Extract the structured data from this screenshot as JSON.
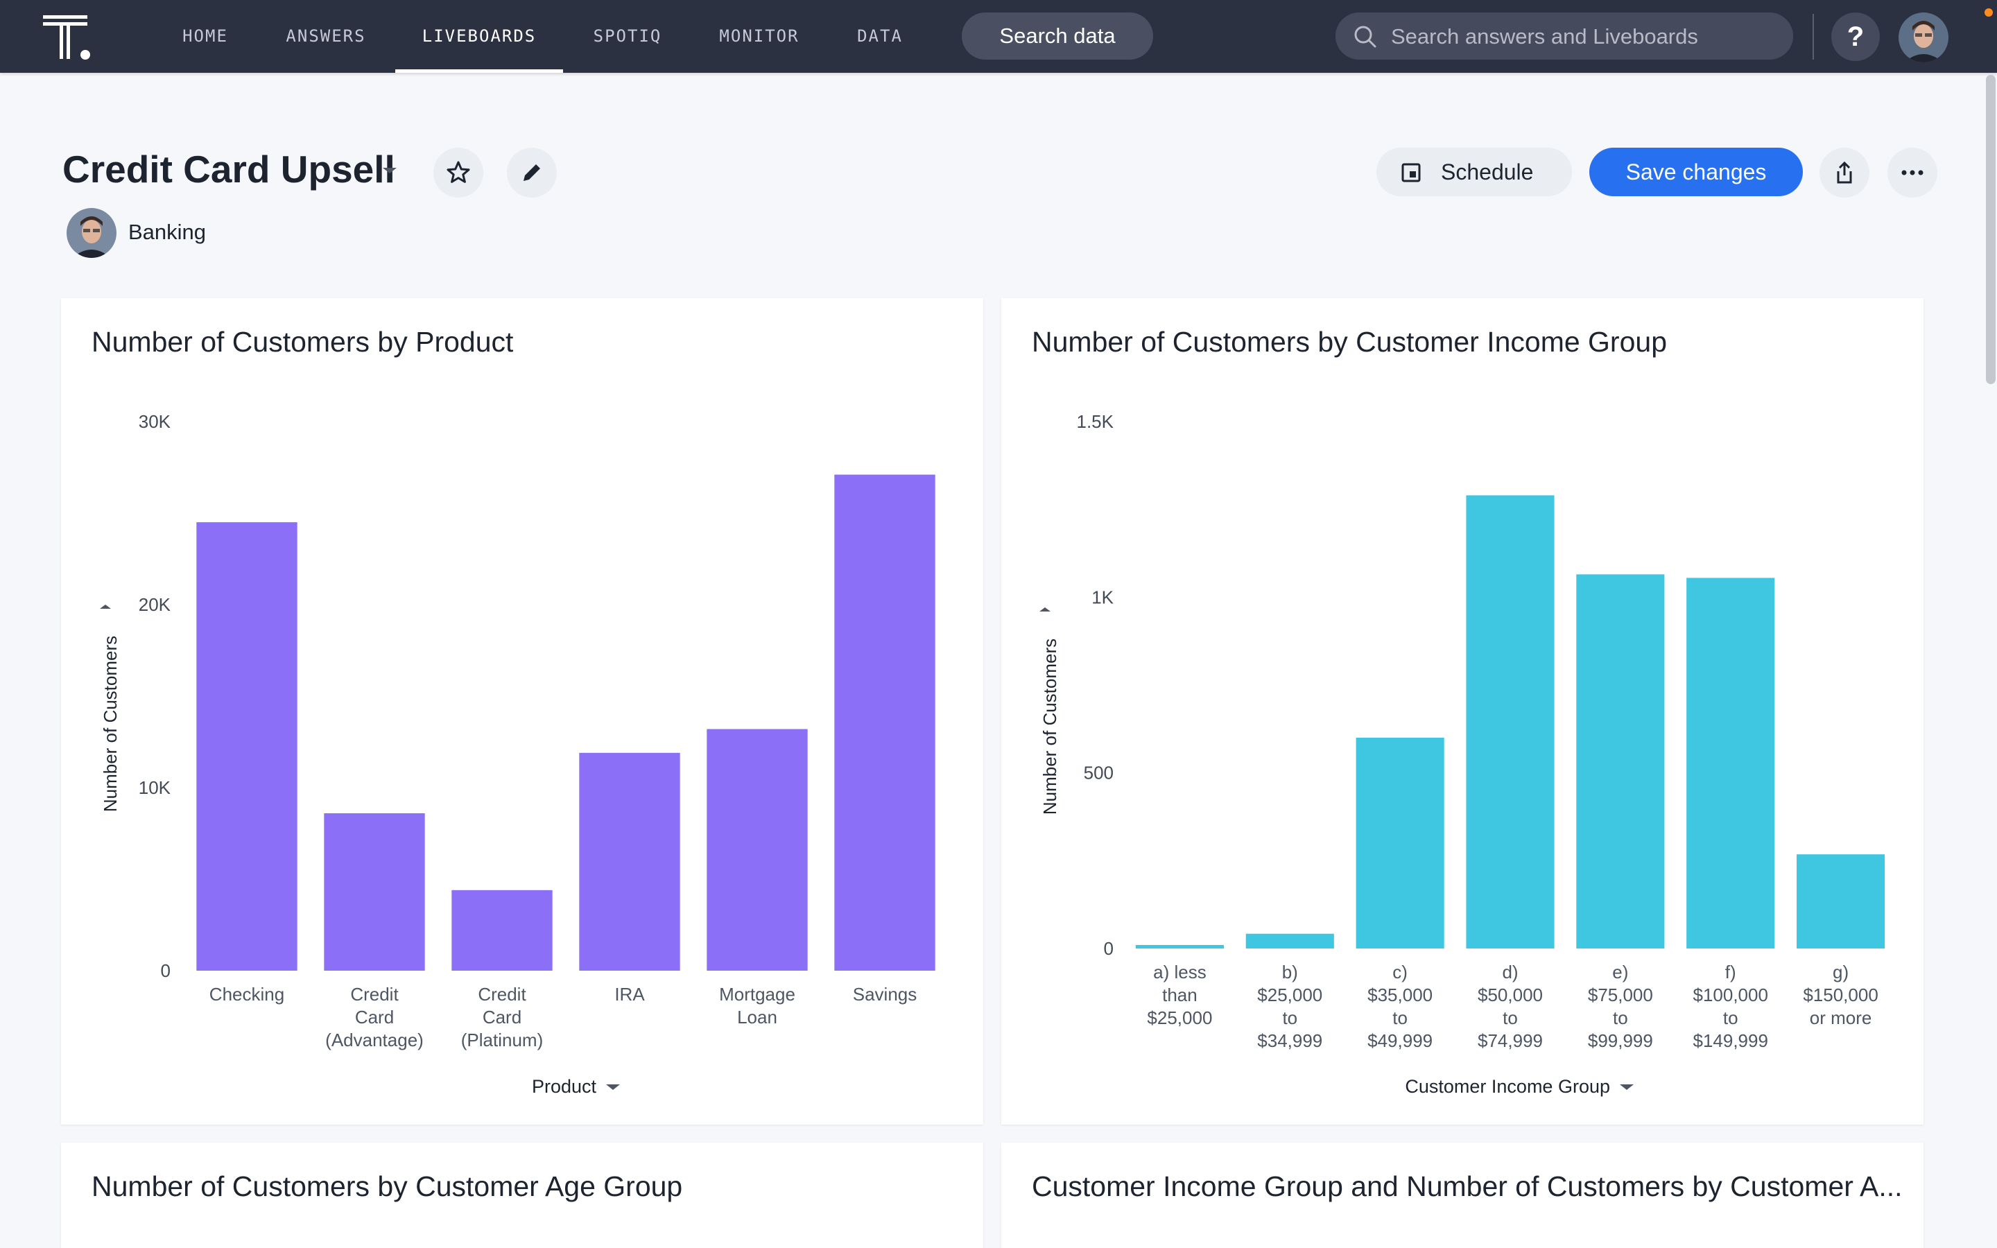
{
  "nav": {
    "items": [
      {
        "label": "HOME",
        "active": false
      },
      {
        "label": "ANSWERS",
        "active": false
      },
      {
        "label": "LIVEBOARDS",
        "active": true
      },
      {
        "label": "SPOTIQ",
        "active": false
      },
      {
        "label": "MONITOR",
        "active": false
      },
      {
        "label": "DATA",
        "active": false
      }
    ],
    "search_data_label": "Search data",
    "global_search_placeholder": "Search answers and Liveboards",
    "help_label": "?"
  },
  "liveboard": {
    "title": "Credit Card Upsell",
    "author": "Banking",
    "schedule_label": "Schedule",
    "save_label": "Save changes"
  },
  "colors": {
    "nav_bg": "#2c3141",
    "accent": "#2770ef",
    "product_bar": "#8c6ff7",
    "income_bar": "#3fc7e2"
  },
  "cards": {
    "c3_title": "Number of Customers by Customer Age Group",
    "c4_title": "Customer Income Group and Number of Customers by Customer A..."
  },
  "chart_data": [
    {
      "type": "bar",
      "title": "Number of Customers by Product",
      "xlabel": "Product",
      "ylabel": "Number of Customers",
      "ylim": [
        0,
        30000
      ],
      "yticks": [
        0,
        10000,
        20000,
        30000
      ],
      "ytick_labels": [
        "0",
        "10K",
        "20K",
        "30K"
      ],
      "categories": [
        [
          "Checking"
        ],
        [
          "Credit",
          "Card",
          "(Advantage)"
        ],
        [
          "Credit",
          "Card",
          "(Platinum)"
        ],
        [
          "IRA"
        ],
        [
          "Mortgage",
          "Loan"
        ],
        [
          "Savings"
        ]
      ],
      "values": [
        24500,
        8600,
        4400,
        11900,
        13200,
        27100
      ],
      "color": "#8c6ff7"
    },
    {
      "type": "bar",
      "title": "Number of Customers by Customer Income Group",
      "xlabel": "Customer Income Group",
      "ylabel": "Number of Customers",
      "ylim": [
        0,
        1500
      ],
      "yticks": [
        0,
        500,
        1000,
        1500
      ],
      "ytick_labels": [
        "0",
        "500",
        "1K",
        "1.5K"
      ],
      "categories": [
        [
          "a) less",
          "than",
          "$25,000"
        ],
        [
          "b)",
          "$25,000",
          "to",
          "$34,999"
        ],
        [
          "c)",
          "$35,000",
          "to",
          "$49,999"
        ],
        [
          "d)",
          "$50,000",
          "to",
          "$74,999"
        ],
        [
          "e)",
          "$75,000",
          "to",
          "$99,999"
        ],
        [
          "f)",
          "$100,000",
          "to",
          "$149,999"
        ],
        [
          "g)",
          "$150,000",
          "or more"
        ]
      ],
      "values": [
        10,
        42,
        600,
        1290,
        1065,
        1055,
        268
      ],
      "color": "#3fc7e2"
    }
  ]
}
